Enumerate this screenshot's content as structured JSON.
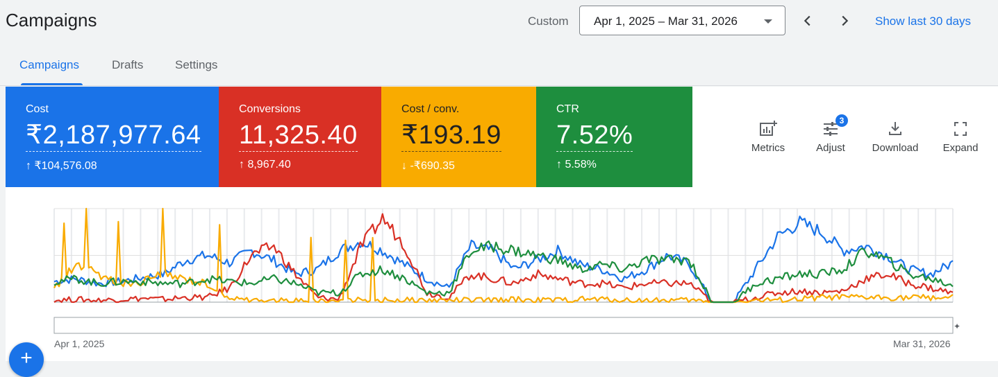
{
  "header": {
    "title": "Campaigns",
    "date_label": "Custom",
    "date_range": "Apr 1, 2025 – Mar 31, 2026",
    "show_last": "Show last 30 days"
  },
  "tabs": [
    {
      "label": "Campaigns",
      "active": true
    },
    {
      "label": "Drafts",
      "active": false
    },
    {
      "label": "Settings",
      "active": false
    }
  ],
  "scorecards": [
    {
      "label": "Cost",
      "value": "₹2,187,977.64",
      "delta": "↑ ₹104,576.08",
      "color": "#1a73e8"
    },
    {
      "label": "Conversions",
      "value": "11,325.40",
      "delta": "↑ 8,967.40",
      "color": "#d93025"
    },
    {
      "label": "Cost / conv.",
      "value": "₹193.19",
      "delta": "↓ -₹690.35",
      "color": "#f9ab00"
    },
    {
      "label": "CTR",
      "value": "7.52%",
      "delta": "↑ 5.58%",
      "color": "#1e8e3e"
    }
  ],
  "toolbar": {
    "metrics": "Metrics",
    "adjust": "Adjust",
    "adjust_badge": "3",
    "download": "Download",
    "expand": "Expand"
  },
  "chart_data": {
    "type": "line",
    "x_start": "Apr 1, 2025",
    "x_end": "Mar 31, 2026",
    "x_count": 365,
    "y_scale": "normalized",
    "ylim": [
      0,
      1
    ],
    "grid": true,
    "series": [
      {
        "color": "#1a73e8",
        "trend": [
          0.22,
          0.25,
          0.2,
          0.22,
          0.26,
          0.3,
          0.45,
          0.5,
          0.42,
          0.55,
          0.45,
          0.3,
          0.35,
          0.55,
          0.65,
          0.55,
          0.4,
          0.25,
          0.15,
          0.6,
          0.55,
          0.35,
          0.45,
          0.55,
          0.4,
          0.35,
          0.25,
          0.35,
          0.5,
          0.4,
          0.0,
          0.0,
          0.35,
          0.7,
          0.85,
          0.75,
          0.55,
          0.6,
          0.5,
          0.35,
          0.3,
          0.42
        ]
      },
      {
        "color": "#d93025",
        "trend": [
          0.02,
          0.03,
          0.02,
          0.03,
          0.04,
          0.03,
          0.05,
          0.05,
          0.15,
          0.5,
          0.6,
          0.3,
          0.05,
          0.03,
          0.6,
          0.9,
          0.6,
          0.1,
          0.05,
          0.3,
          0.25,
          0.2,
          0.3,
          0.25,
          0.2,
          0.2,
          0.15,
          0.2,
          0.2,
          0.2,
          0.0,
          0.0,
          0.05,
          0.1,
          0.12,
          0.1,
          0.12,
          0.25,
          0.3,
          0.2,
          0.15,
          0.1
        ]
      },
      {
        "color": "#f9ab00",
        "trend": [
          0.15,
          0.4,
          0.3,
          0.2,
          0.22,
          0.3,
          0.25,
          0.2,
          0.05,
          0.02,
          0.02,
          0.02,
          0.02,
          0.02,
          0.02,
          0.02,
          0.02,
          0.02,
          0.02,
          0.02,
          0.02,
          0.03,
          0.02,
          0.02,
          0.03,
          0.03,
          0.02,
          0.02,
          0.02,
          0.02,
          0.0,
          0.0,
          0.02,
          0.02,
          0.03,
          0.05,
          0.05,
          0.05,
          0.05,
          0.05,
          0.05,
          0.05
        ]
      },
      {
        "color": "#1e8e3e",
        "trend": [
          0.22,
          0.25,
          0.2,
          0.22,
          0.22,
          0.2,
          0.2,
          0.25,
          0.22,
          0.2,
          0.25,
          0.2,
          0.1,
          0.1,
          0.3,
          0.35,
          0.25,
          0.1,
          0.1,
          0.55,
          0.6,
          0.55,
          0.5,
          0.45,
          0.35,
          0.4,
          0.35,
          0.45,
          0.45,
          0.45,
          0.0,
          0.0,
          0.2,
          0.25,
          0.3,
          0.3,
          0.35,
          0.55,
          0.45,
          0.3,
          0.25,
          0.18
        ]
      }
    ]
  }
}
